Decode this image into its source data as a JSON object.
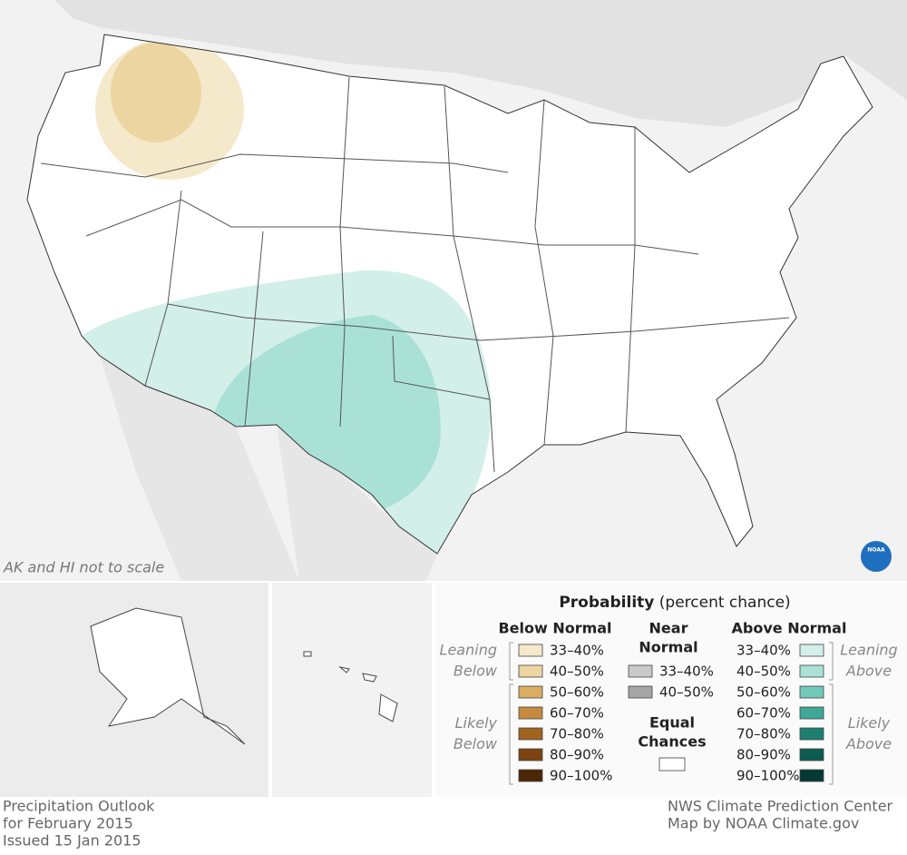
{
  "map": {
    "note": "AK and HI not to scale",
    "logo": "NOAA"
  },
  "legend": {
    "title": "Probability",
    "subtitle": "(percent chance)",
    "columns": [
      {
        "heading": [
          "Below Normal"
        ],
        "groups": [
          {
            "label": [
              "Leaning",
              "Below"
            ],
            "items": [
              {
                "label": "33–40%",
                "color": "#f5e9cb"
              },
              {
                "label": "40–50%",
                "color": "#ecd5a0"
              }
            ]
          },
          {
            "label": [
              "Likely",
              "Below"
            ],
            "items": [
              {
                "label": "50–60%",
                "color": "#d9ad62"
              },
              {
                "label": "60–70%",
                "color": "#c58a3d"
              },
              {
                "label": "70–80%",
                "color": "#a0621f"
              },
              {
                "label": "80–90%",
                "color": "#7d4310"
              },
              {
                "label": "90–100%",
                "color": "#4c2706"
              }
            ]
          }
        ]
      },
      {
        "heading": [
          "Near",
          "Normal"
        ],
        "groups": [
          {
            "items": [
              {
                "label": "33–40%",
                "color": "#c9c9c9"
              },
              {
                "label": "40–50%",
                "color": "#a6a6a6"
              }
            ]
          }
        ]
      },
      {
        "heading": [
          "Above Normal"
        ],
        "groups": [
          {
            "label": [
              "Leaning",
              "Above"
            ],
            "items": [
              {
                "label": "33–40%",
                "color": "#d3efea"
              },
              {
                "label": "40–50%",
                "color": "#a9e1d7"
              }
            ]
          },
          {
            "label": [
              "Likely",
              "Above"
            ],
            "items": [
              {
                "label": "50–60%",
                "color": "#72c8b9"
              },
              {
                "label": "60–70%",
                "color": "#3fa796"
              },
              {
                "label": "70–80%",
                "color": "#1d7f70"
              },
              {
                "label": "80–90%",
                "color": "#0c5c4f"
              },
              {
                "label": "90–100%",
                "color": "#033a31"
              }
            ]
          }
        ]
      }
    ],
    "equal": {
      "heading": [
        "Equal",
        "Chances"
      ],
      "color": "#ffffff"
    }
  },
  "footer": {
    "left": [
      "Precipitation Outlook",
      "for February 2015",
      "Issued 15 Jan 2015"
    ],
    "right": [
      "NWS Climate Prediction Center",
      "Map by NOAA Climate.gov"
    ]
  }
}
